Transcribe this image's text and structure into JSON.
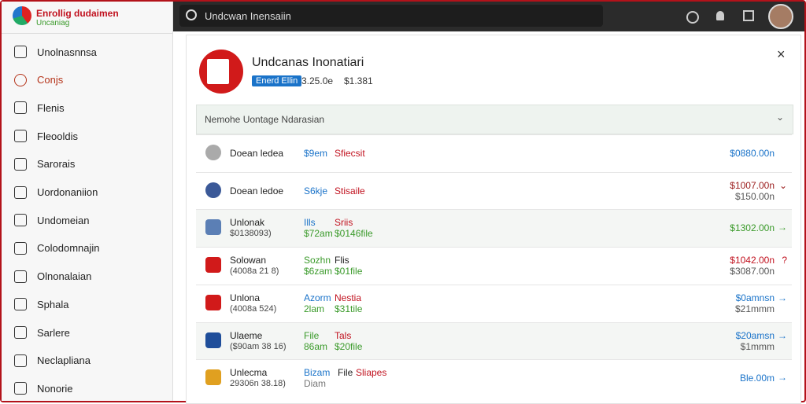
{
  "logo": {
    "title": "Enrollig dudaimen",
    "subtitle": "Uncaniag"
  },
  "search": "Undcwan Inensaiin",
  "sidebar": [
    "Unolnasnnsa",
    "Conjs",
    "Flenis",
    "Fleooldis",
    "Sarorais",
    "Uordonaniion",
    "Undomeian",
    "Colodomnajin",
    "Olnonalaian",
    "Sphala",
    "Sarlere",
    "Neclapliana",
    "Nonorie"
  ],
  "header": {
    "title": "Undcanas Inonatiari",
    "badge": "Enerd Ellin",
    "version": "3.25.0e",
    "price": "$1.381"
  },
  "section": "Nemohe Uontage Ndarasian",
  "rows": [
    {
      "name": "Doean ledea",
      "a": [
        "$9em"
      ],
      "b": [
        "Sfiecsit"
      ],
      "amount": [
        "$0880.00n"
      ]
    },
    {
      "name": "Doean ledoe",
      "a": [
        "S6kje"
      ],
      "b": [
        "Stisaile"
      ],
      "amount": [
        "$1007.00n",
        "$150.00n"
      ]
    },
    {
      "name": "Unlonak",
      "sub": "$0138093)",
      "a": [
        "Ills",
        "$72am"
      ],
      "b": [
        "Sriis",
        "$0146file"
      ],
      "amount": [
        "$1302.00n"
      ]
    },
    {
      "name": "Solowan",
      "sub": "(4008a 21 8)",
      "a": [
        "Sozhn",
        "$6zam"
      ],
      "b": [
        "Flis",
        "$01file"
      ],
      "amount": [
        "$1042.00n",
        "$3087.00n"
      ]
    },
    {
      "name": "Unlona",
      "sub": "(4008a 524)",
      "a": [
        "Azorm",
        "2lam"
      ],
      "b": [
        "Nestia",
        "$31tile"
      ],
      "amount": [
        "$0amnsn",
        "$21mmm"
      ]
    },
    {
      "name": "Ulaeme",
      "sub": "($90am 38 16)",
      "a": [
        "File",
        "86am"
      ],
      "b": [
        "Tals",
        "$20file"
      ],
      "amount": [
        "$20amsn",
        "$1mmm"
      ]
    },
    {
      "name": "Unlecma",
      "sub": "29306n 38.18)",
      "a": [
        "Bizam",
        "Diam"
      ],
      "b": [
        "File",
        "Sliapes"
      ],
      "amount": [
        "Ble.00m"
      ]
    }
  ]
}
